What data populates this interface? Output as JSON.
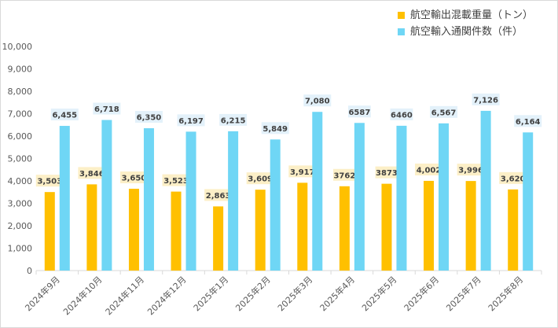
{
  "colors": {
    "series1": "#ffc000",
    "series2": "#6fd6f5",
    "label1_bg": "#fcefc7",
    "label2_bg": "#e3f1fa"
  },
  "chart_data": {
    "type": "bar",
    "categories": [
      "2024年9月",
      "2024年10月",
      "2024年11月",
      "2024年12月",
      "2025年1月",
      "2025年2月",
      "2025年3月",
      "2025年4月",
      "2025年5月",
      "2025年6月",
      "2025年7月",
      "2025年8月"
    ],
    "series": [
      {
        "name": "航空輸出混載重量（トン）",
        "values": [
          3503,
          3846,
          3650,
          3523,
          2863,
          3609,
          3917,
          3762,
          3873,
          4002,
          3996,
          3620
        ],
        "labels": [
          "3,503",
          "3,846",
          "3,650",
          "3,523",
          "2,863",
          "3,609",
          "3,917",
          "3762",
          "3873",
          "4,002",
          "3,996",
          "3,620"
        ]
      },
      {
        "name": "航空輸入通関件数（件）",
        "values": [
          6455,
          6718,
          6350,
          6197,
          6215,
          5849,
          7080,
          6587,
          6460,
          6567,
          7126,
          6164
        ],
        "labels": [
          "6,455",
          "6,718",
          "6,350",
          "6,197",
          "6,215",
          "5,849",
          "7,080",
          "6587",
          "6460",
          "6,567",
          "7,126",
          "6,164"
        ]
      }
    ],
    "ylim": [
      0,
      10000
    ],
    "yticks": [
      "0",
      "1,000",
      "2,000",
      "3,000",
      "4,000",
      "5,000",
      "6,000",
      "7,000",
      "8,000",
      "9,000",
      "10,000"
    ],
    "legend_position": "top-right",
    "grid": false
  }
}
